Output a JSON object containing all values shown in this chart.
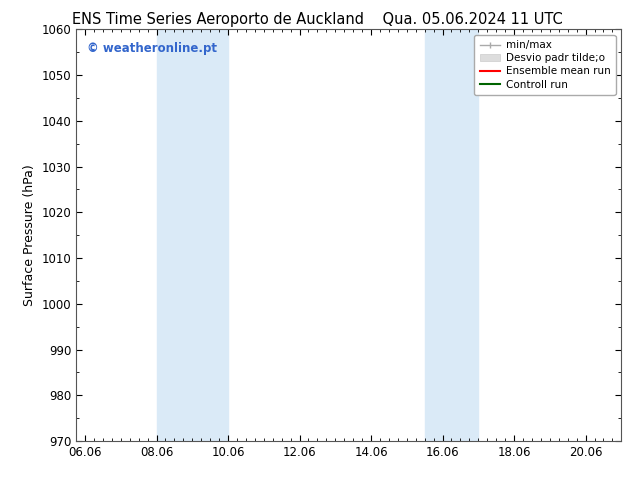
{
  "title": "ENS Time Series Aeroporto de Auckland    Qua. 05.06.2024 11 UTC",
  "title_left": "ENS Time Series Aeroporto de Auckland",
  "title_right": "Qua. 05.06.2024 11 UTC",
  "ylabel": "Surface Pressure (hPa)",
  "ylim": [
    970,
    1060
  ],
  "yticks": [
    970,
    980,
    990,
    1000,
    1010,
    1020,
    1030,
    1040,
    1050,
    1060
  ],
  "xlim_start": 5.75,
  "xlim_end": 21.0,
  "xtick_labels": [
    "06.06",
    "08.06",
    "10.06",
    "12.06",
    "14.06",
    "16.06",
    "18.06",
    "20.06"
  ],
  "xtick_positions": [
    6.0,
    8.0,
    10.0,
    12.0,
    14.0,
    16.0,
    18.0,
    20.0
  ],
  "shaded_bands": [
    {
      "xmin": 8.0,
      "xmax": 10.0,
      "color": "#daeaf7"
    },
    {
      "xmin": 15.5,
      "xmax": 17.0,
      "color": "#daeaf7"
    }
  ],
  "watermark_text": "© weatheronline.pt",
  "watermark_color": "#3366cc",
  "bg_color": "#ffffff",
  "plot_bg_color": "#ffffff",
  "grid_color": "#cccccc",
  "title_fontsize": 10.5,
  "tick_fontsize": 8.5,
  "label_fontsize": 9
}
